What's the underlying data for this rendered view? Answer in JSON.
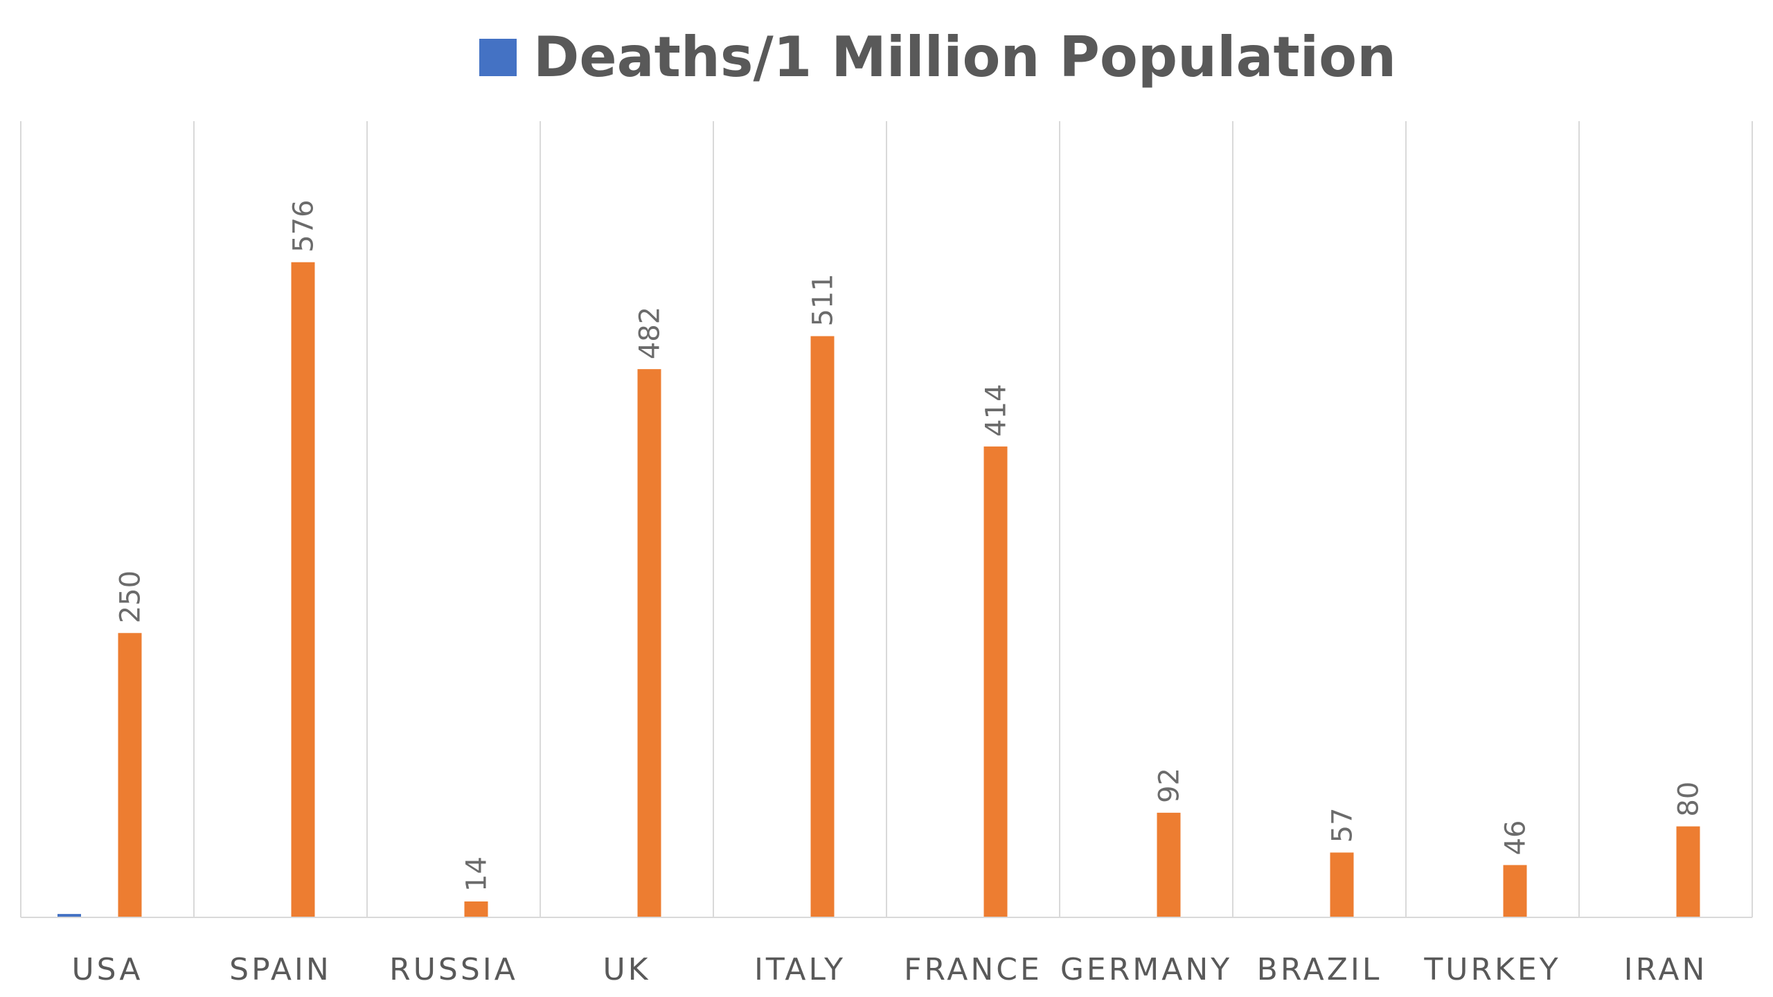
{
  "chart_data": {
    "type": "bar",
    "title": "",
    "xlabel": "",
    "ylabel": "",
    "categories": [
      "USA",
      "SPAIN",
      "RUSSIA",
      "UK",
      "ITALY",
      "FRANCE",
      "GERMANY",
      "BRAZIL",
      "TURKEY",
      "IRAN"
    ],
    "series": [
      {
        "name": "Deaths/1 Million Population",
        "color": "#4472C4",
        "values": [
          3,
          0,
          0,
          0,
          0,
          0,
          0,
          0,
          0,
          0
        ],
        "show_labels": false
      },
      {
        "color": "#ED7D31",
        "values": [
          250,
          576,
          14,
          482,
          511,
          414,
          92,
          57,
          46,
          80
        ],
        "show_labels": true
      }
    ],
    "ylim": [
      0,
      700
    ],
    "grid": "vertical-category-separators",
    "legend": "top-center"
  }
}
